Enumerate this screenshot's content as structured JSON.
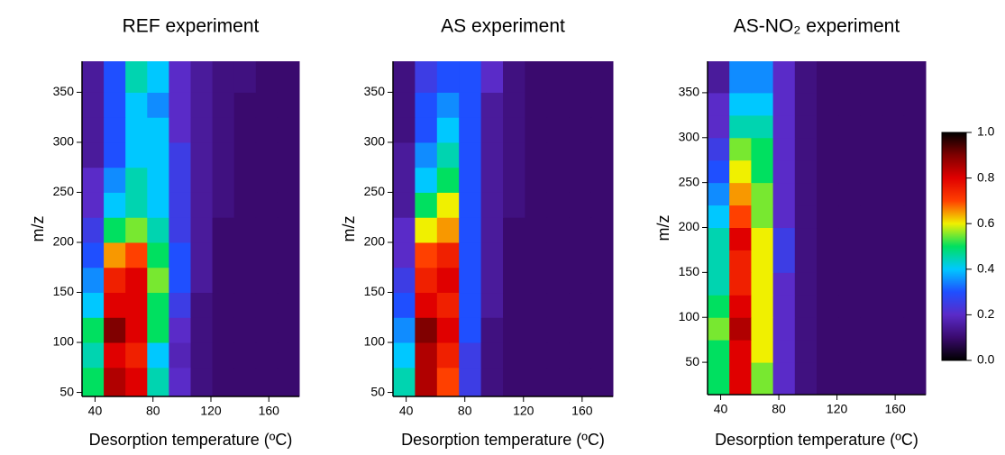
{
  "chart_data": [
    {
      "type": "heatmap",
      "title": "REF experiment",
      "xlabel": "Desorption temperature (ºC)",
      "ylabel": "m/z",
      "xlim": [
        31,
        181
      ],
      "ylim": [
        46,
        381
      ],
      "xticks": [
        40,
        80,
        120,
        160
      ],
      "yticks": [
        50,
        100,
        150,
        200,
        250,
        300,
        350
      ],
      "x_edges": [
        31,
        46,
        61,
        76,
        91,
        106,
        121,
        136,
        151,
        166,
        181
      ],
      "y_edges": [
        46,
        75,
        100,
        125,
        150,
        175,
        200,
        225,
        250,
        275,
        300,
        325,
        350,
        381
      ],
      "z": [
        [
          0.5,
          0.85,
          0.8,
          0.45,
          0.2,
          0.12,
          0.1,
          0.1,
          0.1,
          0.1
        ],
        [
          0.45,
          0.8,
          0.75,
          0.4,
          0.18,
          0.12,
          0.1,
          0.1,
          0.1,
          0.1
        ],
        [
          0.5,
          0.9,
          0.8,
          0.5,
          0.2,
          0.12,
          0.1,
          0.1,
          0.1,
          0.1
        ],
        [
          0.4,
          0.8,
          0.8,
          0.5,
          0.25,
          0.12,
          0.1,
          0.1,
          0.1,
          0.1
        ],
        [
          0.35,
          0.75,
          0.8,
          0.55,
          0.3,
          0.15,
          0.1,
          0.1,
          0.1,
          0.1
        ],
        [
          0.3,
          0.65,
          0.7,
          0.5,
          0.3,
          0.15,
          0.1,
          0.1,
          0.1,
          0.1
        ],
        [
          0.25,
          0.5,
          0.55,
          0.45,
          0.25,
          0.15,
          0.1,
          0.1,
          0.1,
          0.1
        ],
        [
          0.2,
          0.4,
          0.45,
          0.4,
          0.25,
          0.15,
          0.12,
          0.1,
          0.1,
          0.1
        ],
        [
          0.2,
          0.35,
          0.45,
          0.4,
          0.25,
          0.15,
          0.12,
          0.1,
          0.1,
          0.1
        ],
        [
          0.15,
          0.3,
          0.4,
          0.4,
          0.25,
          0.15,
          0.12,
          0.1,
          0.1,
          0.1
        ],
        [
          0.15,
          0.3,
          0.4,
          0.4,
          0.2,
          0.15,
          0.12,
          0.1,
          0.1,
          0.1
        ],
        [
          0.15,
          0.3,
          0.4,
          0.35,
          0.2,
          0.15,
          0.12,
          0.1,
          0.1,
          0.1
        ],
        [
          0.15,
          0.3,
          0.45,
          0.4,
          0.2,
          0.15,
          0.12,
          0.12,
          0.1,
          0.1
        ]
      ]
    },
    {
      "type": "heatmap",
      "title": "AS experiment",
      "xlabel": "Desorption temperature (ºC)",
      "ylabel": "m/z",
      "xlim": [
        31,
        181
      ],
      "ylim": [
        46,
        381
      ],
      "xticks": [
        40,
        80,
        120,
        160
      ],
      "yticks": [
        50,
        100,
        150,
        200,
        250,
        300,
        350
      ],
      "x_edges": [
        31,
        46,
        61,
        76,
        91,
        106,
        121,
        136,
        151,
        166,
        181
      ],
      "y_edges": [
        46,
        75,
        100,
        125,
        150,
        175,
        200,
        225,
        250,
        275,
        300,
        325,
        350,
        381
      ],
      "z": [
        [
          0.45,
          0.85,
          0.7,
          0.25,
          0.12,
          0.1,
          0.1,
          0.1,
          0.1,
          0.1
        ],
        [
          0.4,
          0.85,
          0.75,
          0.25,
          0.12,
          0.1,
          0.1,
          0.1,
          0.1,
          0.1
        ],
        [
          0.35,
          0.9,
          0.8,
          0.3,
          0.12,
          0.1,
          0.1,
          0.1,
          0.1,
          0.1
        ],
        [
          0.3,
          0.8,
          0.75,
          0.3,
          0.15,
          0.1,
          0.1,
          0.1,
          0.1,
          0.1
        ],
        [
          0.25,
          0.75,
          0.8,
          0.3,
          0.15,
          0.1,
          0.1,
          0.1,
          0.1,
          0.1
        ],
        [
          0.2,
          0.7,
          0.75,
          0.3,
          0.15,
          0.1,
          0.1,
          0.1,
          0.1,
          0.1
        ],
        [
          0.2,
          0.6,
          0.65,
          0.3,
          0.15,
          0.1,
          0.1,
          0.1,
          0.1,
          0.1
        ],
        [
          0.15,
          0.5,
          0.6,
          0.3,
          0.15,
          0.12,
          0.1,
          0.1,
          0.1,
          0.1
        ],
        [
          0.15,
          0.4,
          0.5,
          0.3,
          0.15,
          0.12,
          0.1,
          0.1,
          0.1,
          0.1
        ],
        [
          0.15,
          0.35,
          0.45,
          0.3,
          0.15,
          0.12,
          0.1,
          0.1,
          0.1,
          0.1
        ],
        [
          0.12,
          0.3,
          0.4,
          0.3,
          0.15,
          0.12,
          0.1,
          0.1,
          0.1,
          0.1
        ],
        [
          0.12,
          0.3,
          0.35,
          0.3,
          0.15,
          0.12,
          0.1,
          0.1,
          0.1,
          0.1
        ],
        [
          0.12,
          0.25,
          0.3,
          0.3,
          0.2,
          0.12,
          0.1,
          0.1,
          0.1,
          0.1
        ]
      ]
    },
    {
      "type": "heatmap",
      "title": "AS-NO₂ experiment",
      "xlabel": "Desorption temperature (ºC)",
      "ylabel": "m/z",
      "xlim": [
        31,
        181
      ],
      "ylim": [
        14,
        385
      ],
      "xticks": [
        40,
        80,
        120,
        160
      ],
      "yticks": [
        50,
        100,
        150,
        200,
        250,
        300,
        350
      ],
      "x_edges": [
        31,
        46,
        61,
        76,
        91,
        106,
        121,
        136,
        151,
        166,
        181
      ],
      "y_edges": [
        14,
        50,
        75,
        100,
        125,
        150,
        175,
        200,
        225,
        250,
        275,
        300,
        325,
        350,
        385
      ],
      "z": [
        [
          0.5,
          0.8,
          0.55,
          0.2,
          0.12,
          0.1,
          0.1,
          0.1,
          0.1,
          0.1
        ],
        [
          0.5,
          0.8,
          0.6,
          0.2,
          0.12,
          0.1,
          0.1,
          0.1,
          0.1,
          0.1
        ],
        [
          0.55,
          0.85,
          0.6,
          0.2,
          0.12,
          0.1,
          0.1,
          0.1,
          0.1,
          0.1
        ],
        [
          0.5,
          0.8,
          0.6,
          0.2,
          0.12,
          0.1,
          0.1,
          0.1,
          0.1,
          0.1
        ],
        [
          0.45,
          0.75,
          0.6,
          0.2,
          0.12,
          0.1,
          0.1,
          0.1,
          0.1,
          0.1
        ],
        [
          0.45,
          0.75,
          0.6,
          0.25,
          0.12,
          0.1,
          0.1,
          0.1,
          0.1,
          0.1
        ],
        [
          0.45,
          0.8,
          0.6,
          0.25,
          0.12,
          0.1,
          0.1,
          0.1,
          0.1,
          0.1
        ],
        [
          0.4,
          0.7,
          0.55,
          0.2,
          0.12,
          0.1,
          0.1,
          0.1,
          0.1,
          0.1
        ],
        [
          0.35,
          0.65,
          0.55,
          0.2,
          0.12,
          0.1,
          0.1,
          0.1,
          0.1,
          0.1
        ],
        [
          0.3,
          0.6,
          0.5,
          0.2,
          0.12,
          0.1,
          0.1,
          0.1,
          0.1,
          0.1
        ],
        [
          0.25,
          0.55,
          0.5,
          0.2,
          0.12,
          0.1,
          0.1,
          0.1,
          0.1,
          0.1
        ],
        [
          0.2,
          0.45,
          0.45,
          0.2,
          0.12,
          0.1,
          0.1,
          0.1,
          0.1,
          0.1
        ],
        [
          0.2,
          0.4,
          0.4,
          0.2,
          0.12,
          0.1,
          0.1,
          0.1,
          0.1,
          0.1
        ],
        [
          0.15,
          0.35,
          0.35,
          0.2,
          0.12,
          0.1,
          0.1,
          0.1,
          0.1,
          0.1
        ]
      ]
    },
    {
      "type": "colorbar",
      "ylim": [
        0,
        1
      ],
      "yticks": [
        {
          "value": 0,
          "label": "0.0"
        },
        0.2,
        0.4,
        0.6,
        0.8,
        {
          "value": 1,
          "label": "1.0"
        }
      ],
      "colormap": [
        "#000000",
        "#3a0a6e",
        "#5a2bc8",
        "#1f4fff",
        "#00c8ff",
        "#00e060",
        "#f0f000",
        "#ff4000",
        "#e00000",
        "#800000",
        "#000000"
      ]
    }
  ]
}
